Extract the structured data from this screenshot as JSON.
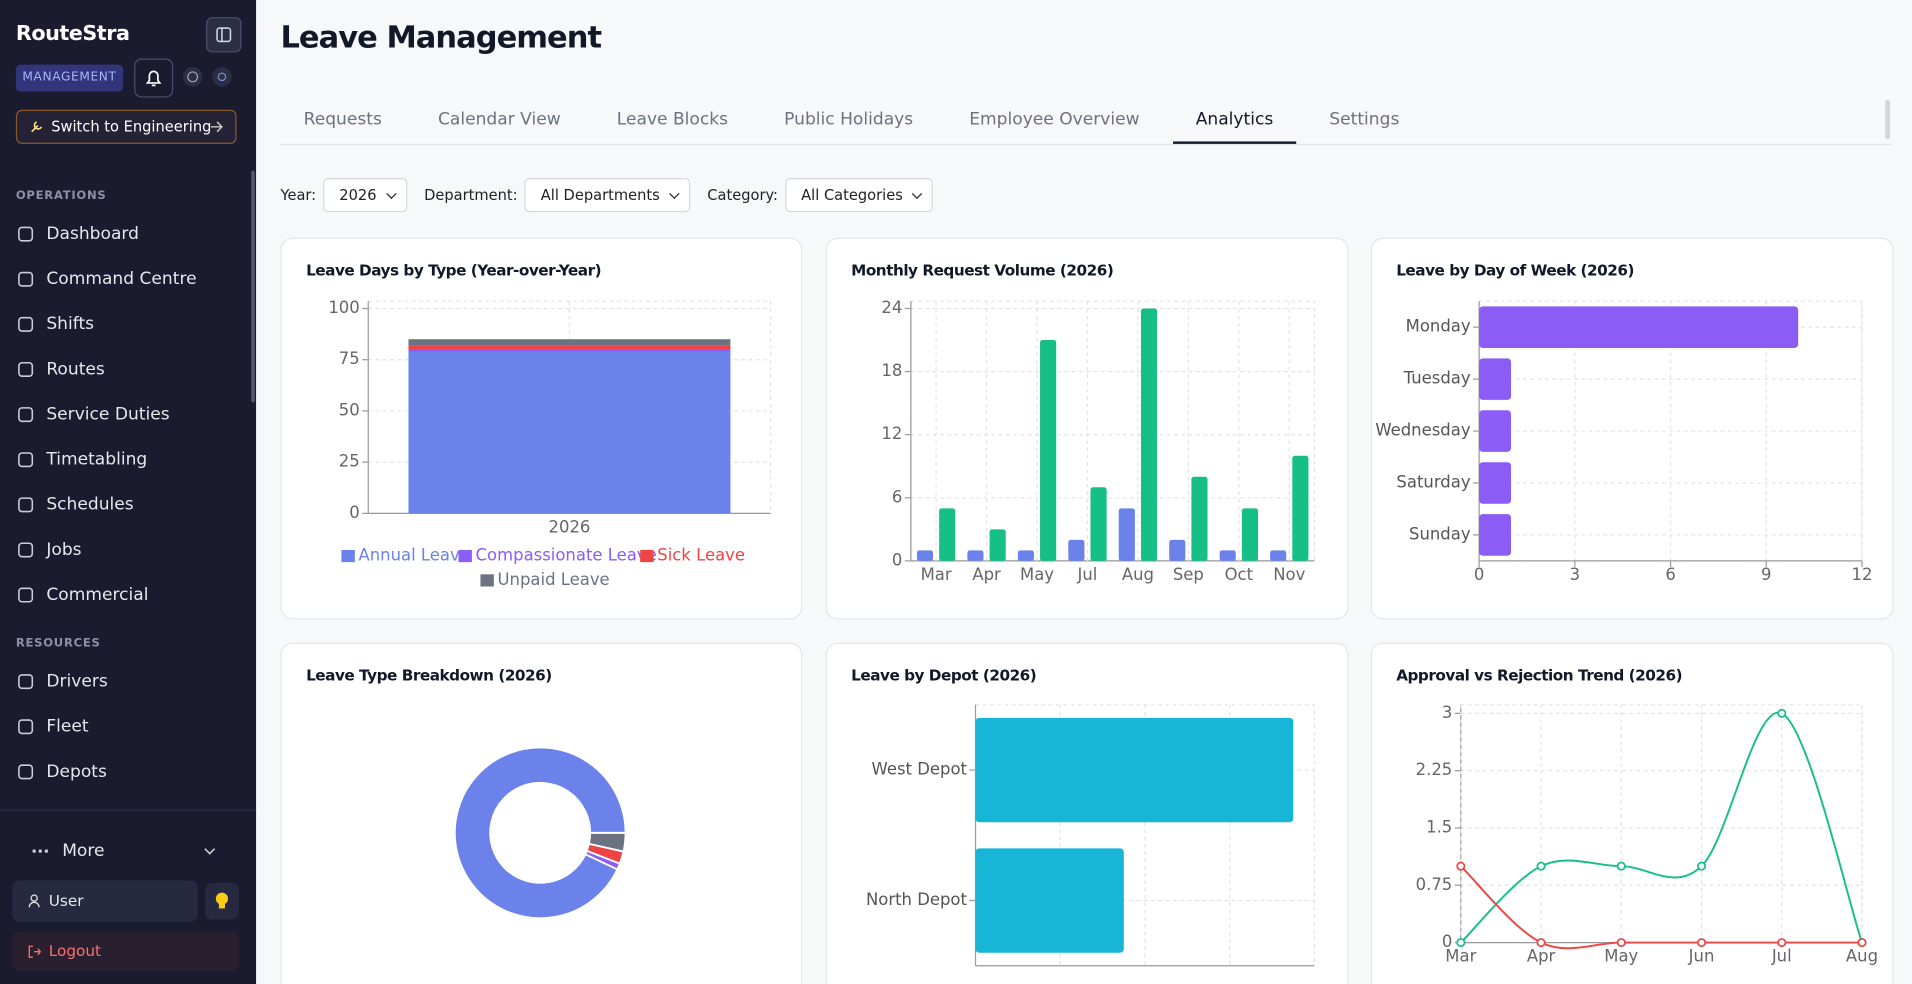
{
  "sidebar": {
    "brand": "RouteStra",
    "badge": "MANAGEMENT",
    "switch": "Switch to Engineering",
    "sections": [
      {
        "title": "OPERATIONS",
        "items": [
          "Dashboard",
          "Command Centre",
          "Shifts",
          "Routes",
          "Service Duties",
          "Timetabling",
          "Schedules",
          "Jobs",
          "Commercial"
        ]
      },
      {
        "title": "RESOURCES",
        "items": [
          "Drivers",
          "Fleet",
          "Depots"
        ]
      }
    ],
    "more": "More",
    "user": "User",
    "logout": "Logout"
  },
  "header": {
    "title": "Leave Management"
  },
  "tabs": {
    "items": [
      {
        "label": "Requests"
      },
      {
        "label": "Calendar View"
      },
      {
        "label": "Leave Blocks"
      },
      {
        "label": "Public Holidays"
      },
      {
        "label": "Employee Overview"
      },
      {
        "label": "Analytics",
        "active": true
      },
      {
        "label": "Settings"
      }
    ]
  },
  "filters": [
    {
      "label": "Year:",
      "value": "2026"
    },
    {
      "label": "Department:",
      "value": "All Departments"
    },
    {
      "label": "Category:",
      "value": "All Categories"
    }
  ],
  "chart_data": [
    {
      "type": "stacked_bar",
      "title": "Leave Days by Type (Year-over-Year)",
      "categories": [
        "2026"
      ],
      "series": [
        {
          "name": "Annual Leave",
          "color": "#6b82ea",
          "values": [
            79
          ]
        },
        {
          "name": "Compassionate Leave",
          "color": "#8b5cf6",
          "values": [
            1
          ]
        },
        {
          "name": "Sick Leave",
          "color": "#ef4444",
          "values": [
            2
          ]
        },
        {
          "name": "Unpaid Leave",
          "color": "#6b7280",
          "values": [
            3
          ]
        }
      ],
      "ylim": [
        0,
        100
      ],
      "yticks": [
        0,
        25,
        50,
        75,
        100
      ],
      "grid": true,
      "legend": "bottom"
    },
    {
      "type": "bar",
      "title": "Monthly Request Volume (2026)",
      "categories": [
        "Mar",
        "Apr",
        "May",
        "Jul",
        "Aug",
        "Sep",
        "Oct",
        "Nov"
      ],
      "series": [
        {
          "color": "#6b82ea",
          "values": [
            1,
            1,
            1,
            2,
            5,
            2,
            1,
            1
          ]
        },
        {
          "color": "#16bf85",
          "values": [
            5,
            3,
            21,
            7,
            24,
            8,
            5,
            10
          ]
        }
      ],
      "ylim": [
        0,
        24
      ],
      "yticks": [
        0,
        6,
        12,
        18,
        24
      ],
      "grid": true
    },
    {
      "type": "hbar",
      "title": "Leave by Day of Week (2026)",
      "categories": [
        "Monday",
        "Tuesday",
        "Wednesday",
        "Saturday",
        "Sunday"
      ],
      "values": [
        10,
        1,
        1,
        1,
        1
      ],
      "color": "#8b5cf6",
      "xlim": [
        0,
        12
      ],
      "xticks": [
        0,
        3,
        6,
        9,
        12
      ],
      "grid": true
    },
    {
      "type": "donut",
      "title": "Leave Type Breakdown (2026)",
      "values": [
        3,
        2,
        1,
        79
      ],
      "colors": [
        "#6b7280",
        "#ef4444",
        "#8b5cf6",
        "#6b82ea"
      ]
    },
    {
      "type": "hbar",
      "title": "Leave by Depot (2026)",
      "categories": [
        "West Depot",
        "North Depot"
      ],
      "values": [
        15,
        7
      ],
      "color": "#17b6d6",
      "xlim": [
        0,
        16
      ],
      "grid": true
    },
    {
      "type": "line",
      "title": "Approval vs Rejection Trend (2026)",
      "categories": [
        "Mar",
        "Apr",
        "May",
        "Jun",
        "Jul",
        "Aug"
      ],
      "series": [
        {
          "color": "#16bf85",
          "values": [
            0,
            1,
            1,
            1,
            3,
            0
          ]
        },
        {
          "color": "#ef4444",
          "values": [
            1,
            0,
            0,
            0,
            0,
            0
          ]
        }
      ],
      "ylim": [
        0,
        3
      ],
      "yticks": [
        0,
        0.75,
        1.5,
        2.25,
        3
      ],
      "grid": true
    }
  ]
}
